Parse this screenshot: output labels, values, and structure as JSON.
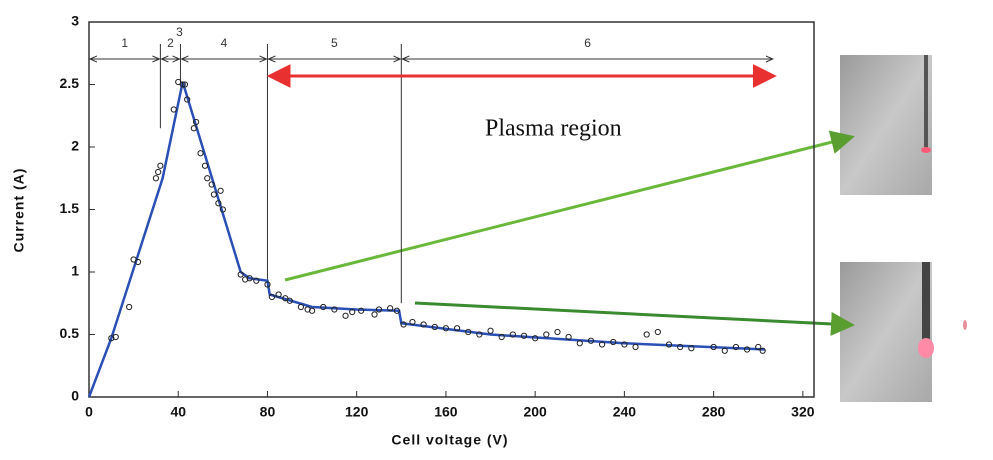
{
  "chart_data": {
    "type": "scatter",
    "xlabel": "Cell voltage (V)",
    "ylabel": "Current (A)",
    "annotation": "Plasma region",
    "xlim": [
      0,
      325
    ],
    "ylim": [
      0,
      3
    ],
    "xticks": [
      0,
      40,
      80,
      120,
      160,
      200,
      240,
      280,
      320
    ],
    "yticks": [
      0,
      0.5,
      1,
      1.5,
      2,
      2.5,
      3
    ],
    "points": {
      "color": "#222",
      "x": [
        10,
        12,
        18,
        20,
        22,
        30,
        31,
        32,
        38,
        40,
        42,
        43,
        44,
        47,
        48,
        50,
        52,
        53,
        55,
        56,
        58,
        59,
        60,
        68,
        70,
        72,
        75,
        80,
        82,
        85,
        88,
        90,
        95,
        98,
        100,
        105,
        110,
        115,
        118,
        122,
        128,
        130,
        135,
        138,
        141,
        145,
        150,
        155,
        160,
        165,
        170,
        175,
        180,
        185,
        190,
        195,
        200,
        205,
        210,
        215,
        220,
        225,
        230,
        235,
        240,
        245,
        250,
        255,
        260,
        265,
        270,
        280,
        285,
        290,
        295,
        300,
        302
      ],
      "y": [
        0.47,
        0.48,
        0.72,
        1.1,
        1.08,
        1.75,
        1.8,
        1.85,
        2.3,
        2.52,
        2.5,
        2.5,
        2.38,
        2.15,
        2.2,
        1.95,
        1.85,
        1.75,
        1.7,
        1.62,
        1.55,
        1.65,
        1.5,
        0.98,
        0.94,
        0.95,
        0.93,
        0.9,
        0.8,
        0.82,
        0.79,
        0.77,
        0.72,
        0.7,
        0.69,
        0.72,
        0.7,
        0.65,
        0.68,
        0.69,
        0.66,
        0.7,
        0.71,
        0.69,
        0.58,
        0.6,
        0.58,
        0.56,
        0.55,
        0.55,
        0.52,
        0.5,
        0.53,
        0.48,
        0.5,
        0.49,
        0.47,
        0.5,
        0.52,
        0.48,
        0.43,
        0.45,
        0.42,
        0.44,
        0.42,
        0.4,
        0.5,
        0.52,
        0.42,
        0.4,
        0.39,
        0.4,
        0.37,
        0.4,
        0.38,
        0.4,
        0.37
      ]
    },
    "fit": {
      "color": "#2a4fb5",
      "x": [
        0,
        10,
        33,
        42,
        68,
        72,
        80,
        81,
        100,
        120,
        139,
        140,
        180,
        240,
        303
      ],
      "y": [
        0,
        0.47,
        1.75,
        2.52,
        1.0,
        0.95,
        0.93,
        0.82,
        0.72,
        0.7,
        0.69,
        0.59,
        0.5,
        0.43,
        0.38
      ]
    },
    "regions": [
      {
        "label": "1",
        "start": 0,
        "end": 32
      },
      {
        "label": "2",
        "start": 32,
        "end": 41
      },
      {
        "label": "3",
        "start": 41,
        "end": 41
      },
      {
        "label": "4",
        "start": 41,
        "end": 80
      },
      {
        "label": "5",
        "start": 80,
        "end": 140
      },
      {
        "label": "6",
        "start": 140,
        "end": 307
      }
    ],
    "boundaries": [
      {
        "x": 32,
        "y": 2.15
      },
      {
        "x": 41,
        "y": 2.5
      },
      {
        "x": 80,
        "y": 0.92
      },
      {
        "x": 140,
        "y": 0.75
      }
    ],
    "plasma_arrow": {
      "start": 81,
      "end": 307,
      "color": "#e83030"
    }
  }
}
